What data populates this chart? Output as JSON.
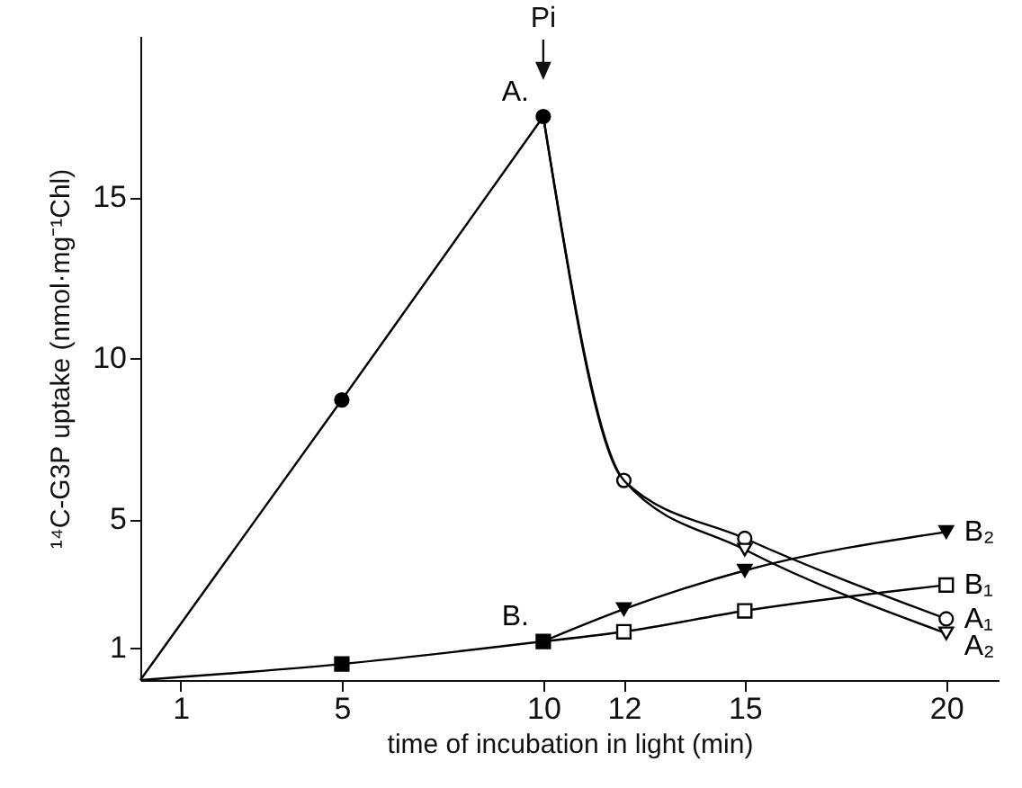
{
  "chart_data": {
    "type": "line",
    "xlabel": "time of incubation in light (min)",
    "ylabel": "¹⁴C-G3P uptake (nmol·mg⁻¹Chl)",
    "xlim": [
      0,
      21.3
    ],
    "ylim": [
      0,
      20
    ],
    "xticks": [
      1,
      5,
      10,
      12,
      15,
      20
    ],
    "yticks": [
      1,
      5,
      10,
      15
    ],
    "grid": false,
    "annotations": [
      {
        "text": "Pi",
        "x": 10
      }
    ],
    "series": [
      {
        "name": "A.",
        "color": "#000000",
        "marker": "circle",
        "x": [
          0,
          5,
          10
        ],
        "values": [
          0,
          8.7,
          17.5
        ]
      },
      {
        "name": "A₁",
        "color": "#000000",
        "marker": "circle-open",
        "x": [
          10,
          12,
          15,
          20
        ],
        "values": [
          17.5,
          6.2,
          4.4,
          1.9
        ]
      },
      {
        "name": "A₂",
        "color": "#000000",
        "marker": "triangle-down-open",
        "x": [
          10,
          12,
          15,
          20
        ],
        "values": [
          17.5,
          6.2,
          4.05,
          1.45
        ]
      },
      {
        "name": "B.",
        "color": "#000000",
        "marker": "square",
        "x": [
          0,
          5,
          10
        ],
        "values": [
          0,
          0.5,
          1.2
        ]
      },
      {
        "name": "B₁",
        "color": "#000000",
        "marker": "square-open",
        "x": [
          10,
          12,
          15,
          20
        ],
        "values": [
          1.2,
          1.5,
          2.15,
          2.95
        ]
      },
      {
        "name": "B₂",
        "color": "#000000",
        "marker": "triangle-down",
        "x": [
          10,
          12,
          15,
          20
        ],
        "values": [
          1.2,
          2.2,
          3.4,
          4.6
        ]
      }
    ]
  }
}
